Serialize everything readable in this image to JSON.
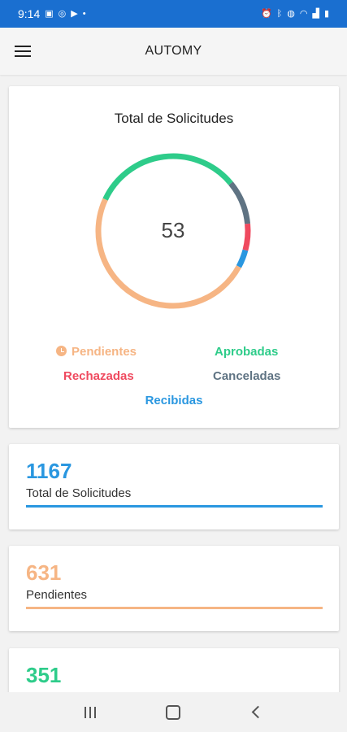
{
  "status_bar": {
    "time": "9:14",
    "left_icons": [
      "image-icon",
      "whatsapp-icon",
      "youtube-icon",
      "dot-icon"
    ],
    "right_icons": [
      "alarm-icon",
      "bluetooth-icon",
      "mute-icon",
      "wifi-icon",
      "signal-icon",
      "battery-icon"
    ],
    "color": "#1a6fd0"
  },
  "app_bar": {
    "title": "AUTOMY",
    "menu_icon": "hamburger-menu-icon"
  },
  "chart_card": {
    "chart_data": {
      "type": "pie",
      "title": "Total de Solicitudes",
      "center_label": "53",
      "categories": [
        "Aprobadas",
        "Canceladas",
        "Rechazadas",
        "Recibidas",
        "Pendientes"
      ],
      "values": [
        17,
        5,
        3,
        2,
        26
      ],
      "colors": [
        "#2ecc8a",
        "#5f7383",
        "#ef4a5f",
        "#2a97e0",
        "#f6b584"
      ],
      "legend_placement": "bottom"
    },
    "legend": {
      "pendientes": "Pendientes",
      "aprobadas": "Aprobadas",
      "rechazadas": "Rechazadas",
      "canceladas": "Canceladas",
      "recibidas": "Recibidas"
    }
  },
  "stats": [
    {
      "value": "1167",
      "label": "Total de Solicitudes",
      "color": "#2a97e0"
    },
    {
      "value": "631",
      "label": "Pendientes",
      "color": "#f6b584"
    },
    {
      "value": "351",
      "label": "",
      "color": "#2ecc8a"
    }
  ],
  "nav_bar": {
    "icons": [
      "recent-apps-icon",
      "home-icon",
      "back-icon"
    ]
  }
}
